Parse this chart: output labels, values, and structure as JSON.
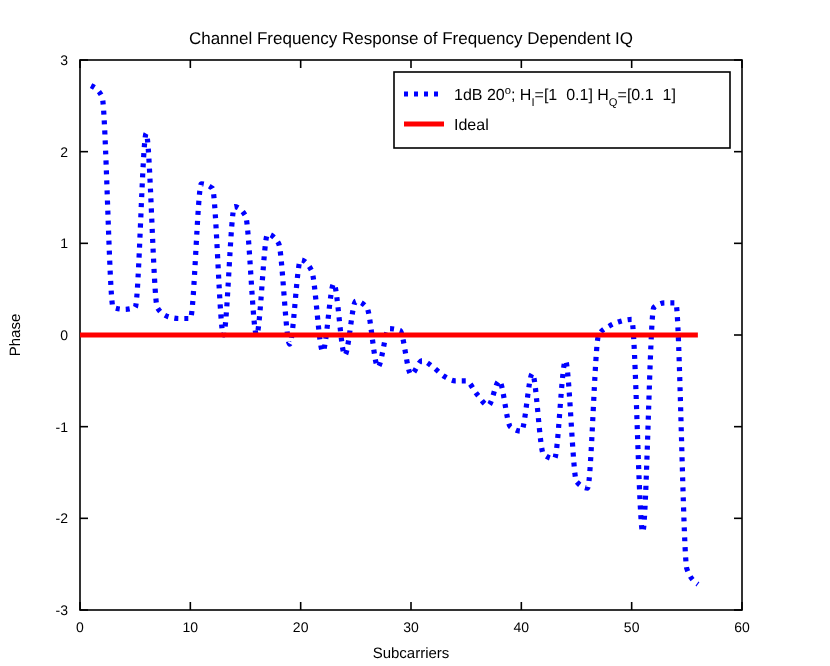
{
  "chart_data": {
    "type": "line",
    "title": "Channel Frequency Response of Frequency Dependent IQ",
    "xlabel": "Subcarriers",
    "ylabel": "Phase",
    "xlim": [
      0,
      60
    ],
    "xticks": [
      0,
      10,
      20,
      30,
      40,
      50,
      60
    ],
    "ylim": [
      -3,
      3
    ],
    "yticks": [
      -3,
      -2,
      -1,
      0,
      1,
      2,
      3
    ],
    "grid": false,
    "legend": "top right",
    "series": [
      {
        "name": "1dB 20$^{o}$; H$_{I}$=[1  0.1] H$_{Q}$=[0.1  1]",
        "color": "#0000ff",
        "line_style": "dotted",
        "x": [
          1,
          2,
          3,
          4,
          5,
          6,
          7,
          8,
          9,
          10,
          11,
          12,
          13,
          14,
          15,
          16,
          17,
          18,
          19,
          20,
          21,
          22,
          23,
          24,
          25,
          26,
          27,
          28,
          29,
          30,
          31,
          32,
          33,
          34,
          35,
          36,
          37,
          38,
          39,
          40,
          41,
          42,
          43,
          44,
          45,
          46,
          47,
          48,
          49,
          50,
          51,
          52,
          53,
          54,
          55,
          56
        ],
        "values": [
          2.72,
          2.6,
          0.3,
          0.28,
          0.3,
          2.2,
          0.3,
          0.2,
          0.18,
          0.18,
          1.65,
          1.6,
          0.0,
          1.4,
          1.3,
          0.0,
          1.1,
          1.0,
          -0.1,
          0.82,
          0.7,
          -0.18,
          0.56,
          -0.22,
          0.37,
          0.3,
          -0.35,
          0.07,
          0.05,
          -0.43,
          -0.28,
          -0.35,
          -0.45,
          -0.5,
          -0.5,
          -0.65,
          -0.77,
          -0.5,
          -1.0,
          -1.05,
          -0.42,
          -1.3,
          -1.35,
          -0.28,
          -1.6,
          -1.67,
          0.0,
          0.1,
          0.15,
          0.17,
          -2.15,
          0.3,
          0.35,
          0.35,
          -2.55,
          -2.72
        ]
      },
      {
        "name": "Ideal",
        "color": "#ff0000",
        "line_style": "solid",
        "x": [
          0,
          56
        ],
        "values": [
          0,
          0
        ]
      }
    ]
  }
}
